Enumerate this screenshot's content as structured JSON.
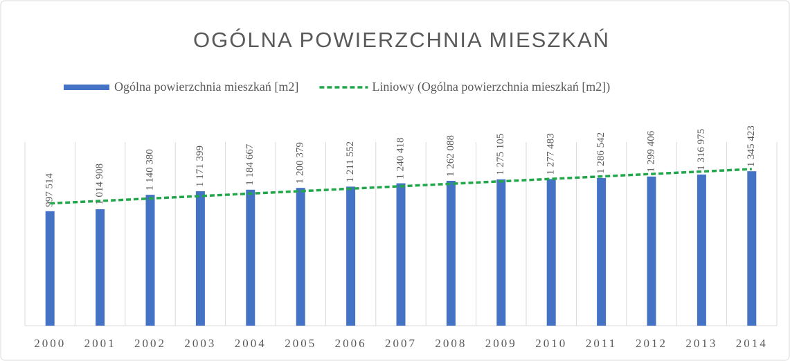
{
  "chart_data": {
    "type": "bar",
    "title": "OGÓLNA POWIERZCHNIA MIESZKAŃ",
    "categories": [
      "2000",
      "2001",
      "2002",
      "2003",
      "2004",
      "2005",
      "2006",
      "2007",
      "2008",
      "2009",
      "2010",
      "2011",
      "2012",
      "2013",
      "2014"
    ],
    "series": [
      {
        "name": "Ogólna powierzchnia mieszkań [m2]",
        "color": "#4472c4",
        "type": "bar",
        "values": [
          997514,
          1014908,
          1140380,
          1171399,
          1184667,
          1200379,
          1211552,
          1240418,
          1262088,
          1275105,
          1277483,
          1286542,
          1299406,
          1316975,
          1345423
        ],
        "value_labels": [
          "997 514",
          "1 014 908",
          "1 140 380",
          "1 171 399",
          "1 184 667",
          "1 200 379",
          "1 211 552",
          "1 240 418",
          "1 262 088",
          "1 275 105",
          "1 277 483",
          "1 286 542",
          "1 299 406",
          "1 316 975",
          "1 345 423"
        ]
      },
      {
        "name": "Liniowy (Ogólna powierzchnia mieszkań [m2])",
        "color": "#21a64a",
        "type": "line",
        "dashed": true,
        "values": [
          1065400,
          1086800,
          1108100,
          1129500,
          1150900,
          1172200,
          1193600,
          1214900,
          1236300,
          1257700,
          1279000,
          1300400,
          1321800,
          1343100,
          1364500
        ]
      }
    ],
    "ylim": [
      0,
      1600000
    ]
  }
}
